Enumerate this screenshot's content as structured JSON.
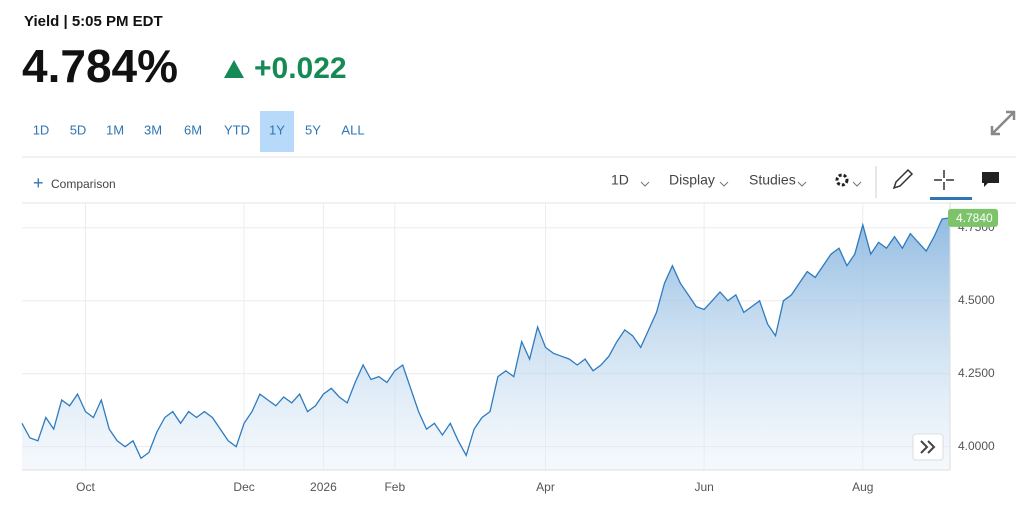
{
  "header": {
    "title": "Yield | 5:05 PM EDT",
    "price": "4.784%",
    "change": "+0.022"
  },
  "ranges": [
    "1D",
    "5D",
    "1M",
    "3M",
    "6M",
    "YTD",
    "1Y",
    "5Y",
    "ALL"
  ],
  "selected_range": 6,
  "toolbar": {
    "comparison": "Comparison",
    "interval": "1D",
    "display": "Display",
    "studies": "Studies"
  },
  "chart_data": {
    "type": "area",
    "color": "#2f7bbf",
    "xlim": [
      0,
      117
    ],
    "xticks": [
      {
        "value": 8,
        "label": "Oct"
      },
      {
        "value": 28,
        "label": "Dec"
      },
      {
        "value": 38,
        "label": "2026"
      },
      {
        "value": 47,
        "label": "Feb"
      },
      {
        "value": 66,
        "label": "Apr"
      },
      {
        "value": 86,
        "label": "Jun"
      },
      {
        "value": 106,
        "label": "Aug"
      }
    ],
    "ylim": [
      3.92,
      4.835
    ],
    "yticks": [
      {
        "value": 4,
        "label": "4.0000"
      },
      {
        "value": 4.25,
        "label": "4.2500"
      },
      {
        "value": 4.5,
        "label": "4.5000"
      },
      {
        "value": 4.75,
        "label": "4.7500"
      }
    ],
    "grid": true,
    "values": [
      4.08,
      4.03,
      4.02,
      4.1,
      4.06,
      4.16,
      4.14,
      4.18,
      4.12,
      4.1,
      4.16,
      4.06,
      4.02,
      4.0,
      4.02,
      3.96,
      3.98,
      4.05,
      4.1,
      4.12,
      4.08,
      4.12,
      4.1,
      4.12,
      4.1,
      4.06,
      4.02,
      4.0,
      4.08,
      4.12,
      4.18,
      4.16,
      4.14,
      4.17,
      4.15,
      4.18,
      4.12,
      4.14,
      4.18,
      4.2,
      4.17,
      4.15,
      4.22,
      4.28,
      4.23,
      4.24,
      4.22,
      4.26,
      4.28,
      4.2,
      4.12,
      4.06,
      4.08,
      4.04,
      4.08,
      4.02,
      3.97,
      4.06,
      4.1,
      4.12,
      4.24,
      4.26,
      4.24,
      4.36,
      4.3,
      4.41,
      4.34,
      4.32,
      4.31,
      4.3,
      4.28,
      4.3,
      4.26,
      4.28,
      4.31,
      4.36,
      4.4,
      4.38,
      4.34,
      4.4,
      4.46,
      4.56,
      4.62,
      4.56,
      4.52,
      4.48,
      4.47,
      4.5,
      4.53,
      4.5,
      4.52,
      4.46,
      4.48,
      4.5,
      4.42,
      4.38,
      4.5,
      4.52,
      4.56,
      4.6,
      4.58,
      4.62,
      4.66,
      4.68,
      4.62,
      4.66,
      4.76,
      4.66,
      4.7,
      4.68,
      4.72,
      4.68,
      4.73,
      4.7,
      4.67,
      4.72,
      4.78,
      4.784
    ],
    "last_label": "4.7840"
  }
}
